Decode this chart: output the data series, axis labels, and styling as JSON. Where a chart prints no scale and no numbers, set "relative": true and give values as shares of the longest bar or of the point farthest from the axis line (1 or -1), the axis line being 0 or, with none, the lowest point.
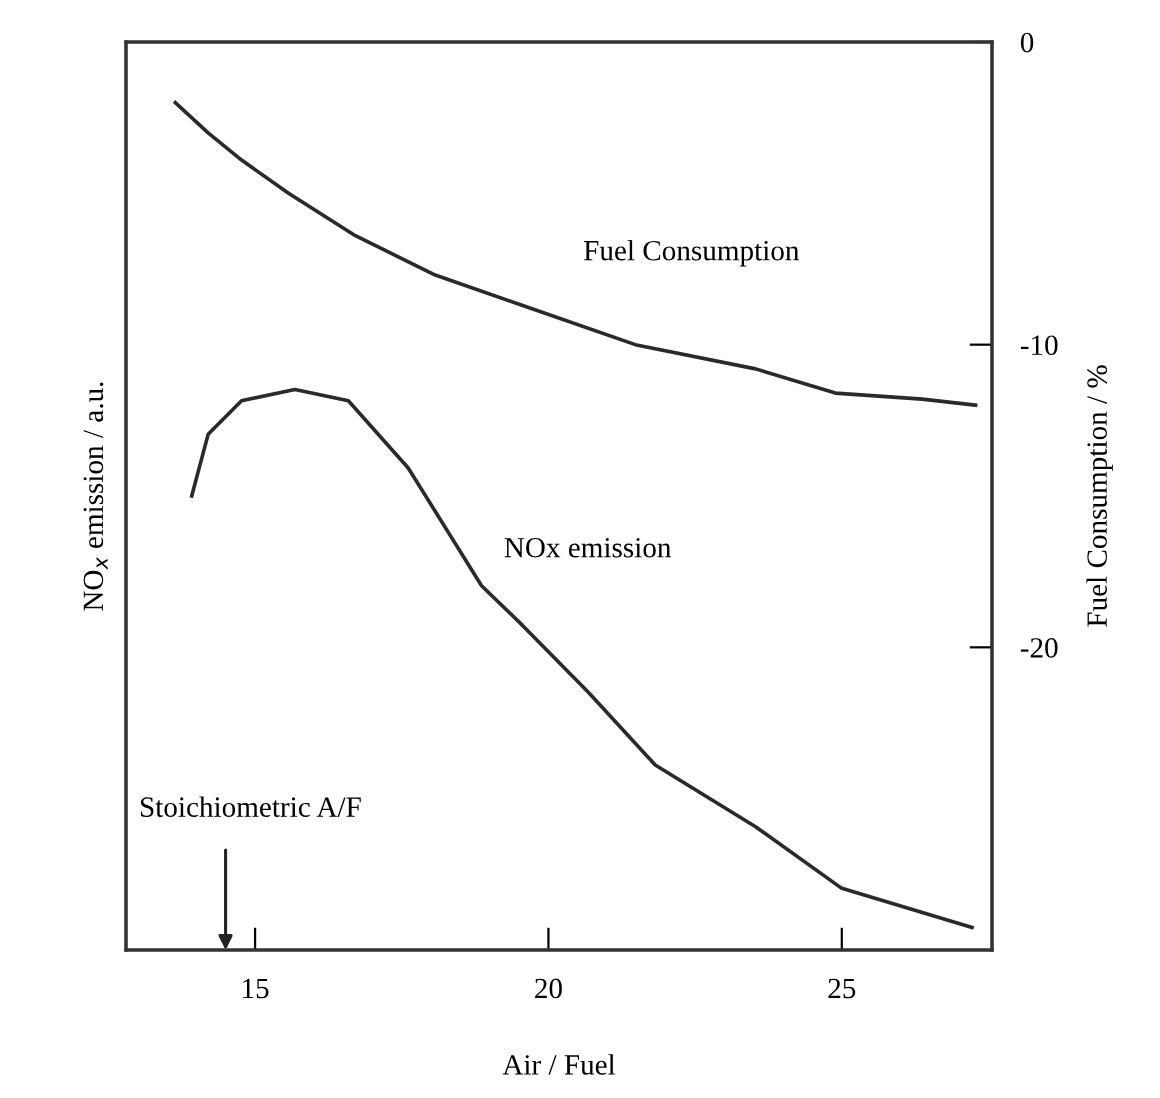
{
  "chart_data": [
    {
      "type": "line",
      "xlabel": "Air / Fuel",
      "ylabel": "NO$_{x}$ emission / a.u.",
      "relative": true,
      "xlim": [
        12.8,
        27.56
      ],
      "xticks": [
        15,
        20,
        25
      ],
      "grid": false,
      "legend": false,
      "marker": "none",
      "line_style": "solid",
      "series": [
        {
          "name": "NOx emission",
          "color": "#2a2a2a",
          "x": [
            13.92,
            14.2,
            14.77,
            15.68,
            16.59,
            17.61,
            18.86,
            19.55,
            20.68,
            21.82,
            23.53,
            25.0,
            27.22
          ],
          "values": [
            0.81,
            0.92,
            0.98,
            1.0,
            0.98,
            0.86,
            0.65,
            0.58,
            0.46,
            0.33,
            0.22,
            0.11,
            0.04
          ]
        }
      ],
      "annotations": [
        "Stoichiometric A/F"
      ]
    },
    {
      "type": "line",
      "ylabel": "Fuel Consumption / %",
      "xlim": [
        12.8,
        27.56
      ],
      "ylim": [
        -30,
        0
      ],
      "yticks": [
        0,
        {
          "value": -10,
          "label": "-10"
        },
        {
          "value": -20,
          "label": "-20"
        }
      ],
      "tick_labels": "y",
      "grid": false,
      "legend": false,
      "marker": "none",
      "line_style": "solid",
      "series": [
        {
          "name": "Fuel Consumption",
          "color": "#2a2a2a",
          "x": [
            13.64,
            14.2,
            14.77,
            15.57,
            16.71,
            18.07,
            19.55,
            21.48,
            23.53,
            24.89,
            26.37,
            27.28
          ],
          "values": [
            -2.0,
            -3.0,
            -3.9,
            -5.0,
            -6.4,
            -7.7,
            -8.7,
            -10.0,
            -10.8,
            -11.6,
            -11.8,
            -12.0
          ]
        }
      ]
    }
  ]
}
